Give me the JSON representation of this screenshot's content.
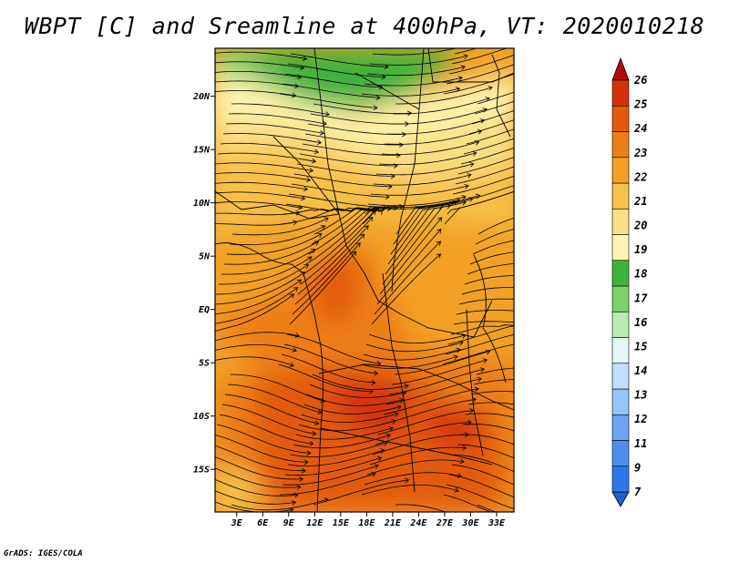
{
  "title": "WBPT [C] and Sreamline at 400hPa, VT: 2020010218",
  "credit": "GrADS: IGES/COLA",
  "map": {
    "lat_ticks": [
      {
        "value": 20,
        "label": "20N"
      },
      {
        "value": 15,
        "label": "15N"
      },
      {
        "value": 10,
        "label": "10N"
      },
      {
        "value": 5,
        "label": "5N"
      },
      {
        "value": 0,
        "label": "EQ"
      },
      {
        "value": -5,
        "label": "5S"
      },
      {
        "value": -10,
        "label": "10S"
      },
      {
        "value": -15,
        "label": "15S"
      }
    ],
    "lon_ticks": [
      {
        "value": 3,
        "label": "3E"
      },
      {
        "value": 6,
        "label": "6E"
      },
      {
        "value": 9,
        "label": "9E"
      },
      {
        "value": 12,
        "label": "12E"
      },
      {
        "value": 15,
        "label": "15E"
      },
      {
        "value": 18,
        "label": "18E"
      },
      {
        "value": 21,
        "label": "21E"
      },
      {
        "value": 24,
        "label": "24E"
      },
      {
        "value": 27,
        "label": "27E"
      },
      {
        "value": 30,
        "label": "30E"
      },
      {
        "value": 33,
        "label": "33E"
      }
    ],
    "lon_range": [
      0.5,
      35
    ],
    "lat_range": [
      -19,
      24.5
    ]
  },
  "colorbar": {
    "labels": [
      "7",
      "9",
      "11",
      "12",
      "13",
      "14",
      "15",
      "16",
      "17",
      "18",
      "19",
      "20",
      "21",
      "22",
      "23",
      "24",
      "25",
      "26"
    ],
    "colors": [
      "#1f5fd6",
      "#2d78e8",
      "#4a8ff0",
      "#6aa6f4",
      "#95c4f8",
      "#c2defb",
      "#e6f6f6",
      "#b9eab0",
      "#79d36a",
      "#3fb23c",
      "#fff5b0",
      "#fbdf84",
      "#f7c04a",
      "#f2a126",
      "#ec7f15",
      "#e35a0a",
      "#d4300a",
      "#b20e06"
    ]
  }
}
